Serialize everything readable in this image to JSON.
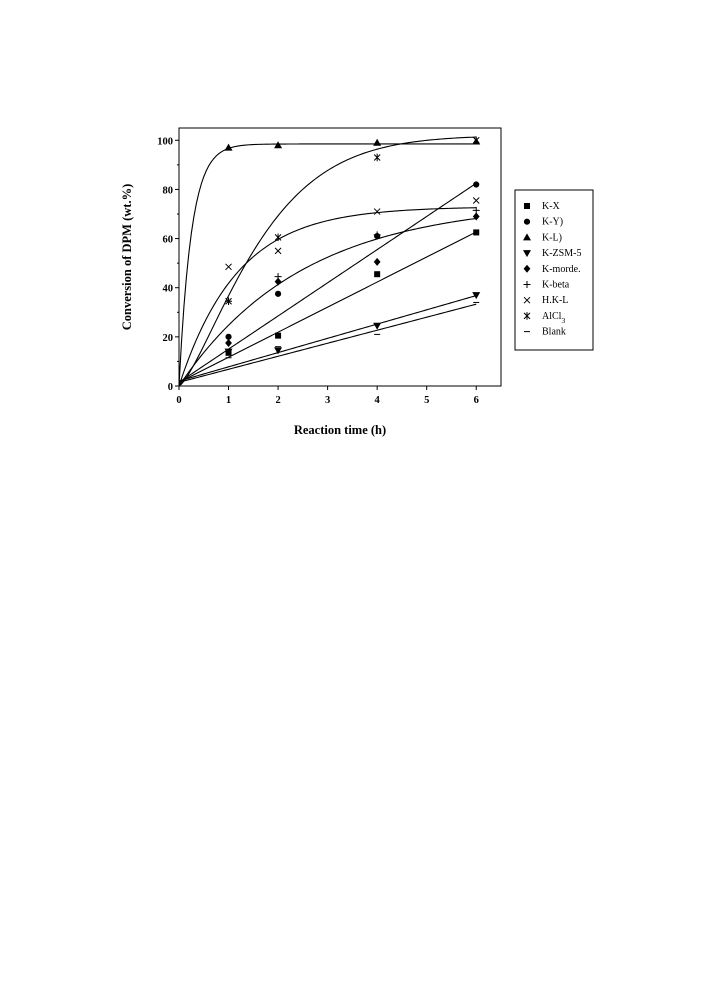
{
  "chart_data": {
    "type": "scatter",
    "title": "",
    "xlabel": "Reaction time (h)",
    "ylabel": "Conversion of DPM (wt.%)",
    "xlim": [
      0,
      6.5
    ],
    "ylim": [
      0,
      105
    ],
    "xticks": [
      "0",
      "1",
      "2",
      "3",
      "4",
      "5",
      "6"
    ],
    "yticks": [
      "0",
      "20",
      "40",
      "60",
      "80",
      "100"
    ],
    "grid": false,
    "legend_position": "right",
    "series": [
      {
        "name": "K-X",
        "marker": "square",
        "x": [
          0,
          1,
          2,
          4,
          6
        ],
        "y": [
          1,
          13.5,
          20.5,
          45.5,
          62.5
        ],
        "fit": "linear",
        "fit_params": [
          1.5,
          10.2
        ]
      },
      {
        "name": "K-Y)",
        "marker": "circle",
        "x": [
          0,
          1,
          2,
          4,
          6
        ],
        "y": [
          1,
          20,
          37.5,
          61,
          82
        ],
        "fit": "linear",
        "fit_params": [
          1.5,
          13.5
        ]
      },
      {
        "name": "K-L)",
        "marker": "triangle-up",
        "x": [
          0,
          1,
          2,
          4,
          6
        ],
        "y": [
          1,
          97,
          98,
          99,
          99.5
        ],
        "fit": "saturation",
        "fit_params": [
          0,
          98.5,
          4
        ]
      },
      {
        "name": "K-ZSM-5",
        "marker": "triangle-down",
        "x": [
          0,
          1,
          2,
          4,
          6
        ],
        "y": [
          1,
          14,
          14.5,
          24.5,
          37
        ],
        "fit": "linear",
        "fit_params": [
          2,
          5.8
        ]
      },
      {
        "name": "K-morde.",
        "marker": "diamond",
        "x": [
          0,
          1,
          2,
          4,
          6
        ],
        "y": [
          1,
          17.5,
          42.5,
          50.5,
          69
        ],
        "fit": "saturation",
        "fit_params": [
          0,
          75,
          0.4
        ]
      },
      {
        "name": "K-beta",
        "marker": "plus",
        "x": [
          0,
          1,
          2,
          4,
          6
        ],
        "y": [
          1,
          34.5,
          44.5,
          61.5,
          71.5
        ],
        "fit": null,
        "fit_params": []
      },
      {
        "name": "H.K-L",
        "marker": "cross",
        "x": [
          0,
          1,
          2,
          4,
          6
        ],
        "y": [
          1,
          48.5,
          55,
          71,
          75.5
        ],
        "fit": "saturation",
        "fit_params": [
          0,
          73,
          0.85
        ]
      },
      {
        "name": "AlCl3",
        "marker": "asterisk",
        "x": [
          0,
          1,
          2,
          4,
          6
        ],
        "y": [
          1,
          34.5,
          60.5,
          93,
          100
        ],
        "fit": "sigmoid",
        "fit_params": [
          0,
          102,
          0.55,
          1.35
        ]
      },
      {
        "name": "Blank",
        "marker": "dash",
        "x": [
          0,
          1,
          2,
          4,
          6
        ],
        "y": [
          1,
          11.5,
          16,
          21,
          34
        ],
        "fit": "linear",
        "fit_params": [
          1.5,
          5.3
        ]
      }
    ],
    "legend_subscript": {
      "AlCl3": [
        "AlCl",
        "3"
      ]
    }
  }
}
